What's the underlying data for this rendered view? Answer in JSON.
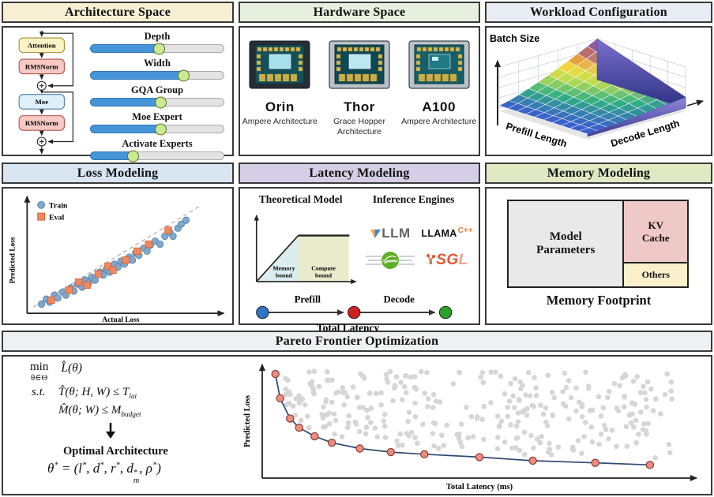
{
  "panels": {
    "architecture": {
      "title": "Architecture Space",
      "header_color": "#f6efd4",
      "flow": {
        "node1": "Attention",
        "node2": "RMSNorm",
        "node3": "Moe",
        "node4": "RMSNorm"
      },
      "sliders": [
        {
          "label": "Depth",
          "value": 52
        },
        {
          "label": "Width",
          "value": 70
        },
        {
          "label": "GQA Group",
          "value": 53
        },
        {
          "label": "Moe Expert",
          "value": 53
        },
        {
          "label": "Activate Experts",
          "value": 32
        }
      ],
      "slider_colors": {
        "fill": "#4595d8",
        "knob": "#cbe98e",
        "track": "#e3e3e3"
      }
    },
    "hardware": {
      "title": "Hardware Space",
      "header_color": "#e7efdf",
      "chips": [
        {
          "name": "Orin",
          "subtitle": "Ampere Architecture"
        },
        {
          "name": "Thor",
          "subtitle": "Grace Hopper Architecture"
        },
        {
          "name": "A100",
          "subtitle": "Ampere Architecture"
        }
      ]
    },
    "workload": {
      "title": "Workload Configuration",
      "header_color": "#e8edf3",
      "z_label": "Batch Size",
      "x_label": "Prefill Length",
      "y_label": "Decode Length"
    },
    "loss": {
      "title": "Loss Modeling",
      "header_color": "#d9e5f1",
      "xlabel": "Actual Loss",
      "ylabel": "Predicted Loss",
      "legend": [
        {
          "label": "Train",
          "marker": "circle",
          "color": "#7fa8cd"
        },
        {
          "label": "Eval",
          "marker": "square",
          "color": "#f0885f"
        }
      ],
      "chart_data": {
        "type": "scatter",
        "xlabel": "Actual Loss",
        "ylabel": "Predicted Loss",
        "series": [
          {
            "name": "Train",
            "points": [
              [
                5,
                3
              ],
              [
                8,
                8
              ],
              [
                10,
                5
              ],
              [
                13,
                12
              ],
              [
                15,
                9
              ],
              [
                18,
                15
              ],
              [
                20,
                12
              ],
              [
                23,
                19
              ],
              [
                25,
                16
              ],
              [
                27,
                23
              ],
              [
                30,
                20
              ],
              [
                32,
                27
              ],
              [
                34,
                24
              ],
              [
                36,
                30
              ],
              [
                38,
                27
              ],
              [
                41,
                35
              ],
              [
                43,
                32
              ],
              [
                45,
                38
              ],
              [
                47,
                35
              ],
              [
                50,
                43
              ],
              [
                52,
                40
              ],
              [
                54,
                46
              ],
              [
                56,
                43
              ],
              [
                59,
                50
              ],
              [
                61,
                47
              ],
              [
                63,
                54
              ],
              [
                65,
                52
              ],
              [
                68,
                59
              ],
              [
                70,
                56
              ],
              [
                72,
                62
              ],
              [
                75,
                66
              ],
              [
                78,
                63
              ],
              [
                81,
                71
              ],
              [
                84,
                75
              ],
              [
                86,
                71
              ],
              [
                89,
                79
              ],
              [
                91,
                83
              ],
              [
                94,
                87
              ]
            ]
          },
          {
            "name": "Eval",
            "points": [
              [
                11,
                7
              ],
              [
                22,
                17
              ],
              [
                28,
                25
              ],
              [
                33,
                22
              ],
              [
                40,
                33
              ],
              [
                46,
                41
              ],
              [
                49,
                37
              ],
              [
                57,
                47
              ],
              [
                64,
                56
              ],
              [
                71,
                63
              ],
              [
                83,
                77
              ]
            ]
          }
        ]
      }
    },
    "latency": {
      "title": "Latency Modeling",
      "header_color": "#d5cee6",
      "theoretical": {
        "heading": "Theoretical Model",
        "region1": "Memory bound",
        "region2": "Compute bound"
      },
      "engines": {
        "heading": "Inference Engines",
        "vllm_v": "v",
        "vllm_rest": "LLM",
        "llama_main": "LLAMA",
        "llama_suffix": "C++",
        "tensorrt_label": "TensorRT",
        "sgl_main": "SG",
        "sgl_last": "L"
      },
      "timeline": {
        "stage1": "Prefill",
        "stage2": "Decode",
        "total": "Total Latency",
        "dot_colors": [
          "#2e75c3",
          "#cf2020",
          "#28a228"
        ]
      }
    },
    "memory": {
      "title": "Memory Modeling",
      "header_color": "#dfeac4",
      "blocks": [
        {
          "label": "Model Parameters",
          "color": "#e9e9e9"
        },
        {
          "label": "KV Cache",
          "color": "#efc9c6"
        },
        {
          "label": "Others",
          "color": "#faf0cb"
        }
      ],
      "caption": "Memory Footprint"
    },
    "pareto": {
      "title": "Pareto Frontier Optimization",
      "header_color": "#eef0f3",
      "equations": {
        "min": "min",
        "domain": "θ∈Θ",
        "objective": "L̂(θ)",
        "st": "s.t.",
        "c1": [
          {
            "t": "T̂(θ; H, W) ≤ "
          },
          {
            "base": "T",
            "sub": "lat"
          }
        ],
        "c2": [
          {
            "t": "M̂(θ; W) ≤ "
          },
          {
            "base": "M",
            "sub": "budget"
          }
        ],
        "optimal_label": "Optimal Architecture",
        "solution": [
          {
            "base": "θ",
            "sup": "*"
          },
          {
            "t": " = ("
          },
          {
            "base": "l",
            "sup": "*"
          },
          {
            "t": ", "
          },
          {
            "base": "d",
            "sup": "*"
          },
          {
            "t": ", "
          },
          {
            "base": "r",
            "sup": "*"
          },
          {
            "t": ", "
          },
          {
            "base": "d",
            "sup": "*",
            "sub": "m"
          },
          {
            "t": ", "
          },
          {
            "base": "ρ",
            "sup": "*"
          },
          {
            "t": ")"
          }
        ]
      },
      "plot": {
        "xlabel": "Total Latency (ms)",
        "ylabel": "Predicted Loss",
        "chart_data": {
          "type": "scatter",
          "frontier_points": [
            [
              2.7,
              93.4
            ],
            [
              3.8,
              71.1
            ],
            [
              6.1,
              52.6
            ],
            [
              8.2,
              44.1
            ],
            [
              11.8,
              36.2
            ],
            [
              15.8,
              30.3
            ],
            [
              22.3,
              25.0
            ],
            [
              29.5,
              21.7
            ],
            [
              37.3,
              19.7
            ],
            [
              50.1,
              17.1
            ],
            [
              62.5,
              13.8
            ],
            [
              77.0,
              11.8
            ],
            [
              89.7,
              9.9
            ]
          ],
          "background_cloud": {
            "count": 310,
            "seed": 7,
            "x_range": [
              5,
              95
            ],
            "y_max": 96,
            "min_gap_above_frontier": 5
          },
          "frontier_color": "#2b4a73",
          "point_color": "#ed8d80",
          "cloud_color": "#d6d6d6"
        }
      }
    }
  }
}
